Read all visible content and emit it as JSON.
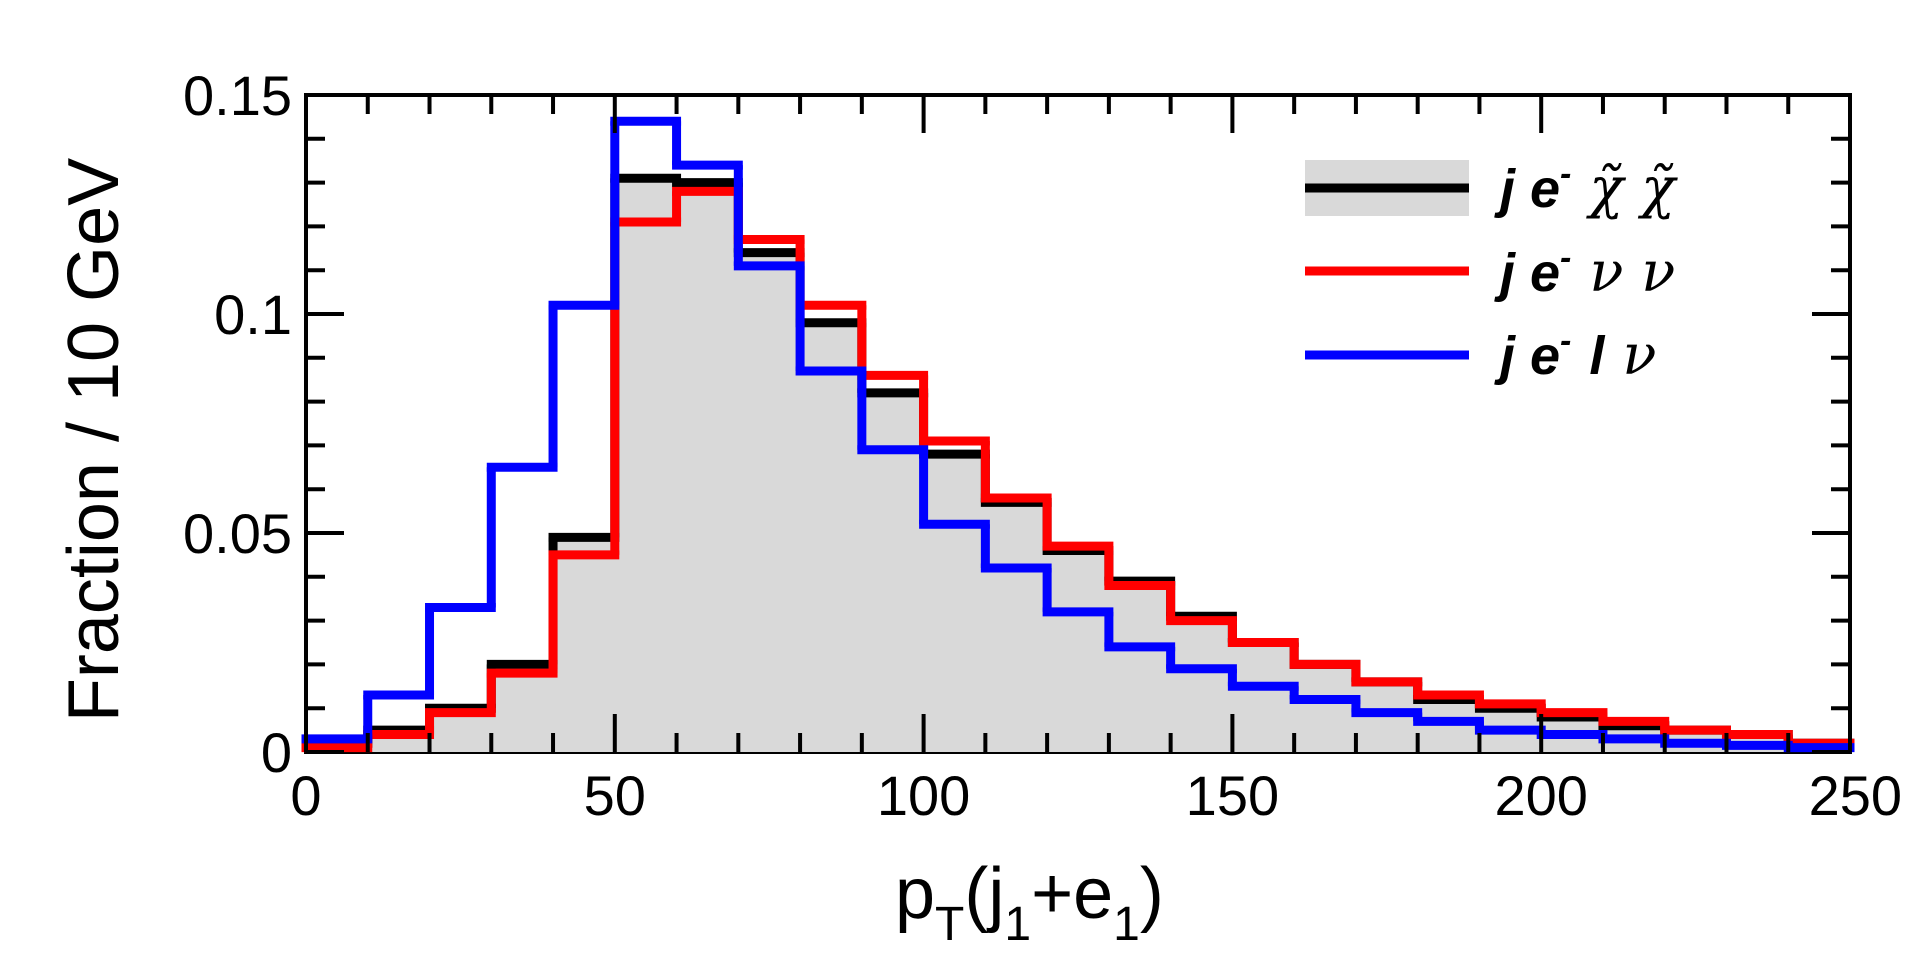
{
  "chart_data": {
    "type": "bar",
    "histogram": true,
    "xlabel": {
      "main": "p",
      "sub1": "T",
      "mid1": "(j",
      "sub2": "1",
      "mid2": "+e",
      "sub3": "1",
      "end": ")"
    },
    "ylabel": "Fraction / 10 GeV",
    "xlim": [
      0,
      250
    ],
    "ylim": [
      0,
      0.15
    ],
    "x_ticks": [
      {
        "value": 0,
        "label": "0"
      },
      {
        "value": 50,
        "label": "50"
      },
      {
        "value": 100,
        "label": "100"
      },
      {
        "value": 150,
        "label": "150"
      },
      {
        "value": 200,
        "label": "200"
      },
      {
        "value": 250,
        "label": "250"
      }
    ],
    "y_ticks": [
      {
        "value": 0,
        "label": "0"
      },
      {
        "value": 0.05,
        "label": "0.05"
      },
      {
        "value": 0.1,
        "label": "0.1"
      },
      {
        "value": 0.15,
        "label": "0.15"
      }
    ],
    "bin_edges": [
      0,
      10,
      20,
      30,
      40,
      50,
      60,
      70,
      80,
      90,
      100,
      110,
      120,
      130,
      140,
      150,
      160,
      170,
      180,
      190,
      200,
      210,
      220,
      230,
      240,
      250
    ],
    "legend_position": "top-right",
    "series": [
      {
        "key": "chichi",
        "label_prefix": "j e",
        "label_sup": "-",
        "label_greek": "χ̃  χ̃",
        "color": "#000000",
        "fill": "#d9d9d9",
        "values": [
          0.002,
          0.005,
          0.01,
          0.02,
          0.049,
          0.131,
          0.13,
          0.114,
          0.098,
          0.082,
          0.068,
          0.057,
          0.046,
          0.039,
          0.031,
          0.025,
          0.02,
          0.016,
          0.012,
          0.01,
          0.008,
          0.006,
          0.005,
          0.004,
          0.002
        ]
      },
      {
        "key": "nunu",
        "label_prefix": "j e",
        "label_sup": "-",
        "label_greek": "ν  ν",
        "color": "#ff0000",
        "values": [
          0.001,
          0.004,
          0.009,
          0.018,
          0.045,
          0.121,
          0.128,
          0.117,
          0.102,
          0.086,
          0.071,
          0.058,
          0.047,
          0.038,
          0.03,
          0.025,
          0.02,
          0.016,
          0.013,
          0.011,
          0.009,
          0.007,
          0.005,
          0.004,
          0.002
        ]
      },
      {
        "key": "lnu",
        "label_prefix": "j e",
        "label_sup": "-",
        "label_italic": "l",
        "label_greek": "ν",
        "color": "#0000ff",
        "values": [
          0.003,
          0.013,
          0.033,
          0.065,
          0.102,
          0.144,
          0.134,
          0.111,
          0.087,
          0.069,
          0.052,
          0.042,
          0.032,
          0.024,
          0.019,
          0.015,
          0.012,
          0.009,
          0.007,
          0.005,
          0.004,
          0.003,
          0.002,
          0.0015,
          0.001
        ]
      }
    ]
  }
}
